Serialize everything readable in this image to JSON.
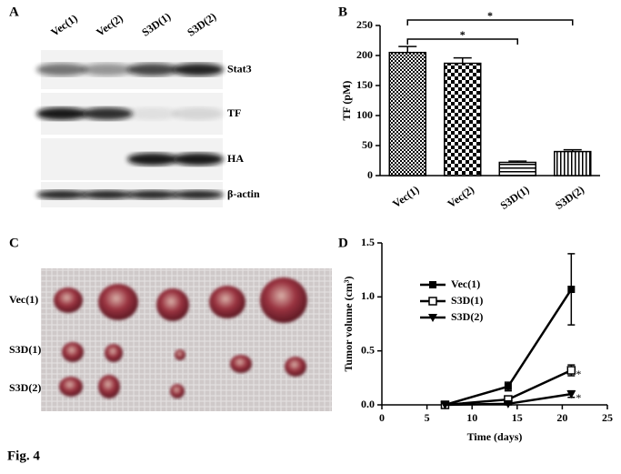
{
  "figure_label": "Fig. 4",
  "panel_labels": [
    "A",
    "B",
    "C",
    "D"
  ],
  "blot": {
    "lanes": [
      "Vec(1)",
      "Vec(2)",
      "S3D(1)",
      "S3D(2)"
    ],
    "rows": [
      "Stat3",
      "TF",
      "HA",
      "β-actin"
    ]
  },
  "photo": {
    "rows": [
      "Vec(1)",
      "S3D(1)",
      "S3D(2)"
    ]
  },
  "chart_data": [
    {
      "type": "bar",
      "ylabel": "TF (pM)",
      "categories": [
        "Vec(1)",
        "Vec(2)",
        "S3D(1)",
        "S3D(2)"
      ],
      "values": [
        205,
        187,
        22,
        40
      ],
      "errors": [
        10,
        9,
        2,
        3
      ],
      "color": "#000000",
      "ylim": [
        0,
        250
      ],
      "yticks": [
        0,
        50,
        100,
        150,
        200,
        250
      ],
      "annotations": [
        "*",
        "*"
      ]
    },
    {
      "type": "line",
      "xlabel": "Time (days)",
      "ylabel": "Tumor volume (cm³)",
      "x": [
        7,
        14,
        21
      ],
      "series": [
        {
          "name": "Vec(1)",
          "color": "#000000",
          "marker": "square-filled",
          "values": [
            0,
            0.17,
            1.07
          ],
          "errors": [
            0,
            0.04,
            0.33
          ]
        },
        {
          "name": "S3D(1)",
          "color": "#000000",
          "marker": "square-open",
          "values": [
            0,
            0.05,
            0.32
          ],
          "errors": [
            0,
            0.02,
            0.05
          ]
        },
        {
          "name": "S3D(2)",
          "color": "#000000",
          "marker": "triangle-down",
          "values": [
            0,
            0.01,
            0.1
          ],
          "errors": [
            0,
            0.01,
            0.03
          ]
        }
      ],
      "xlim": [
        0,
        25
      ],
      "xticks": [
        0,
        5,
        10,
        15,
        20,
        25
      ],
      "ylim": [
        0,
        1.5
      ],
      "yticks": [
        {
          "value": 0,
          "label": "0.0"
        },
        0.5,
        {
          "value": 1,
          "label": "1.0"
        },
        1.5
      ],
      "annotations": [
        "*",
        "*"
      ]
    }
  ]
}
